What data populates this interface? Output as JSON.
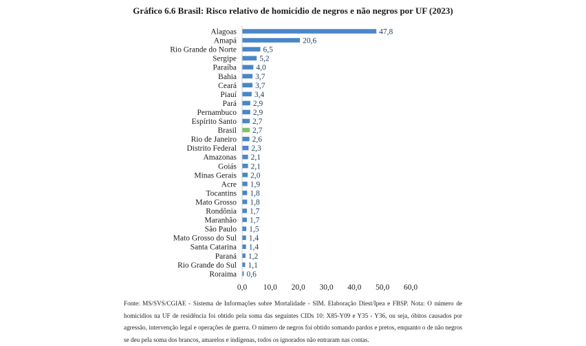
{
  "title": "Gráfico 6.6 Brasil: Risco relativo de homicídio de negros e não negros por UF (2023)",
  "colors": {
    "bar": "#4a86c8",
    "highlight": "#7ec26a",
    "value_text": "#1f3f66"
  },
  "chart_data": {
    "type": "bar",
    "orientation": "horizontal",
    "categories": [
      "Alagoas",
      "Amapá",
      "Rio Grande do Norte",
      "Sergipe",
      "Paraíba",
      "Bahia",
      "Ceará",
      "Piauí",
      "Pará",
      "Pernambuco",
      "Espírito Santo",
      "Brasil",
      "Rio de Janeiro",
      "Distrito Federal",
      "Amazonas",
      "Goiás",
      "Minas Gerais",
      "Acre",
      "Tocantins",
      "Mato Grosso",
      "Rondônia",
      "Maranhão",
      "São Paulo",
      "Mato Grosso do Sul",
      "Santa Catarina",
      "Paraná",
      "Rio Grande do Sul",
      "Roraima"
    ],
    "values": [
      47.8,
      20.6,
      6.5,
      5.2,
      4.0,
      3.7,
      3.7,
      3.4,
      2.9,
      2.9,
      2.7,
      2.7,
      2.6,
      2.3,
      2.1,
      2.1,
      2.0,
      1.9,
      1.8,
      1.8,
      1.7,
      1.7,
      1.5,
      1.4,
      1.4,
      1.2,
      1.1,
      0.6
    ],
    "value_labels": [
      "47,8",
      "20,6",
      "6,5",
      "5,2",
      "4,0",
      "3,7",
      "3,7",
      "3,4",
      "2,9",
      "2,9",
      "2,7",
      "2,7",
      "2,6",
      "2,3",
      "2,1",
      "2,1",
      "2,0",
      "1,9",
      "1,8",
      "1,8",
      "1,7",
      "1,7",
      "1,5",
      "1,4",
      "1,4",
      "1,2",
      "1,1",
      "0,6"
    ],
    "highlight_category": "Brasil",
    "xlim": [
      0,
      60
    ],
    "xticks": [
      0,
      10,
      20,
      30,
      40,
      50,
      60
    ],
    "xtick_labels": [
      "0,0",
      "10,0",
      "20,0",
      "30,0",
      "40,0",
      "50,0",
      "60,0"
    ],
    "grid": false,
    "legend": "none"
  },
  "source": "Fonte: MS/SVS/CGIAE - Sistema de Informações sobre Mortalidade - SIM. Elaboração Diest/Ipea e FBSP. Nota: O número de homicídios na UF de residência foi obtido pela soma das seguintes CIDs 10: X85-Y09 e Y35 - Y36, ou seja, óbitos causados por agressão, intervenção legal e operações de guerra. O número de negros foi obtido somando pardos e pretos, enquanto o de não negros se deu pela soma dos brancos, amarelos e indígenas, todos os ignorados não entraram nas contas."
}
